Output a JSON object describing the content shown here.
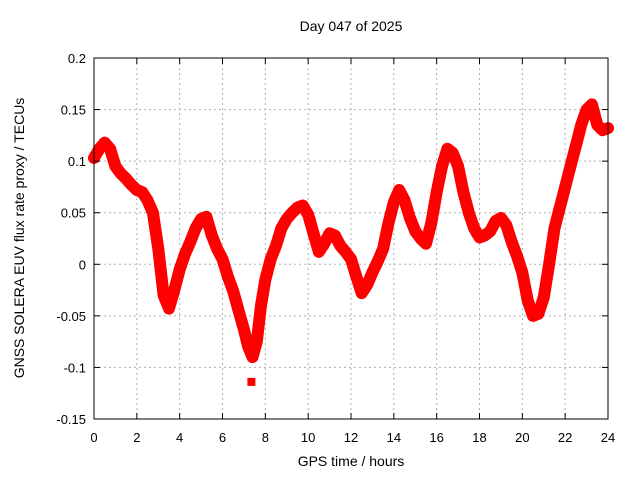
{
  "title": "Day 047 of 2025",
  "axes": {
    "xlabel": "GPS time / hours",
    "ylabel": "GNSS SOLERA EUV flux rate proxy / TECUs"
  },
  "colors": {
    "background": "#ffffff",
    "plot_border": "#000000",
    "grid": "#b0b0b0",
    "series": "#ff0000",
    "text": "#000000"
  },
  "chart_data": {
    "type": "scatter",
    "title": "Day 047 of 2025",
    "xlabel": "GPS time / hours",
    "ylabel": "GNSS SOLERA EUV flux rate proxy / TECUs",
    "xlim": [
      0,
      24
    ],
    "ylim": [
      -0.15,
      0.2
    ],
    "xticks": [
      0,
      2,
      4,
      6,
      8,
      10,
      12,
      14,
      16,
      18,
      20,
      22,
      24
    ],
    "xtick_labels": [
      "0",
      "2",
      "4",
      "6",
      "8",
      "10",
      "12",
      "14",
      "16",
      "18",
      "20",
      "22",
      "24"
    ],
    "yticks": [
      -0.15,
      -0.1,
      -0.05,
      0,
      0.05,
      0.1,
      0.15,
      0.2
    ],
    "ytick_labels": [
      "-0.15",
      "-0.1",
      "-0.05",
      "0",
      "0.05",
      "0.1",
      "0.15",
      "0.2"
    ],
    "grid": true,
    "legend": false,
    "series": [
      {
        "name": "GNSS SOLERA EUV flux rate proxy",
        "color": "#ff0000",
        "x": [
          0,
          0.25,
          0.5,
          0.75,
          1,
          1.25,
          1.5,
          1.75,
          2,
          2.25,
          2.5,
          2.75,
          3,
          3.25,
          3.5,
          3.75,
          4,
          4.25,
          4.5,
          4.75,
          5,
          5.25,
          5.5,
          5.75,
          6,
          6.25,
          6.5,
          6.75,
          7,
          7.2,
          7.4,
          7.6,
          7.8,
          8,
          8.25,
          8.5,
          8.75,
          9,
          9.25,
          9.5,
          9.75,
          10,
          10.25,
          10.5,
          10.75,
          11,
          11.25,
          11.5,
          11.75,
          12,
          12.25,
          12.5,
          12.75,
          13,
          13.25,
          13.5,
          13.75,
          14,
          14.25,
          14.5,
          14.75,
          15,
          15.25,
          15.5,
          15.75,
          16,
          16.25,
          16.5,
          16.75,
          17,
          17.25,
          17.5,
          17.75,
          18,
          18.25,
          18.5,
          18.75,
          19,
          19.25,
          19.5,
          19.75,
          20,
          20.25,
          20.5,
          20.75,
          21,
          21.25,
          21.5,
          21.75,
          22,
          22.25,
          22.5,
          22.75,
          23,
          23.25,
          23.5,
          23.75,
          24
        ],
        "y": [
          0.103,
          0.112,
          0.118,
          0.112,
          0.095,
          0.088,
          0.083,
          0.077,
          0.072,
          0.07,
          0.062,
          0.05,
          0.015,
          -0.03,
          -0.043,
          -0.025,
          -0.005,
          0.01,
          0.022,
          0.035,
          0.044,
          0.046,
          0.028,
          0.015,
          0.005,
          -0.012,
          -0.026,
          -0.045,
          -0.063,
          -0.08,
          -0.09,
          -0.075,
          -0.04,
          -0.015,
          0.005,
          0.018,
          0.035,
          0.044,
          0.05,
          0.055,
          0.057,
          0.048,
          0.03,
          0.012,
          0.02,
          0.03,
          0.028,
          0.018,
          0.012,
          0.005,
          -0.012,
          -0.028,
          -0.02,
          -0.008,
          0.003,
          0.015,
          0.04,
          0.06,
          0.072,
          0.062,
          0.045,
          0.032,
          0.025,
          0.02,
          0.04,
          0.07,
          0.095,
          0.112,
          0.108,
          0.095,
          0.07,
          0.05,
          0.035,
          0.026,
          0.028,
          0.032,
          0.042,
          0.045,
          0.038,
          0.022,
          0.008,
          -0.008,
          -0.035,
          -0.05,
          -0.048,
          -0.032,
          0.0,
          0.035,
          0.055,
          0.075,
          0.095,
          0.115,
          0.135,
          0.15,
          0.155,
          0.135,
          0.13,
          0.132
        ]
      }
    ],
    "outliers": [
      {
        "x": 7.35,
        "y": -0.114
      }
    ]
  }
}
